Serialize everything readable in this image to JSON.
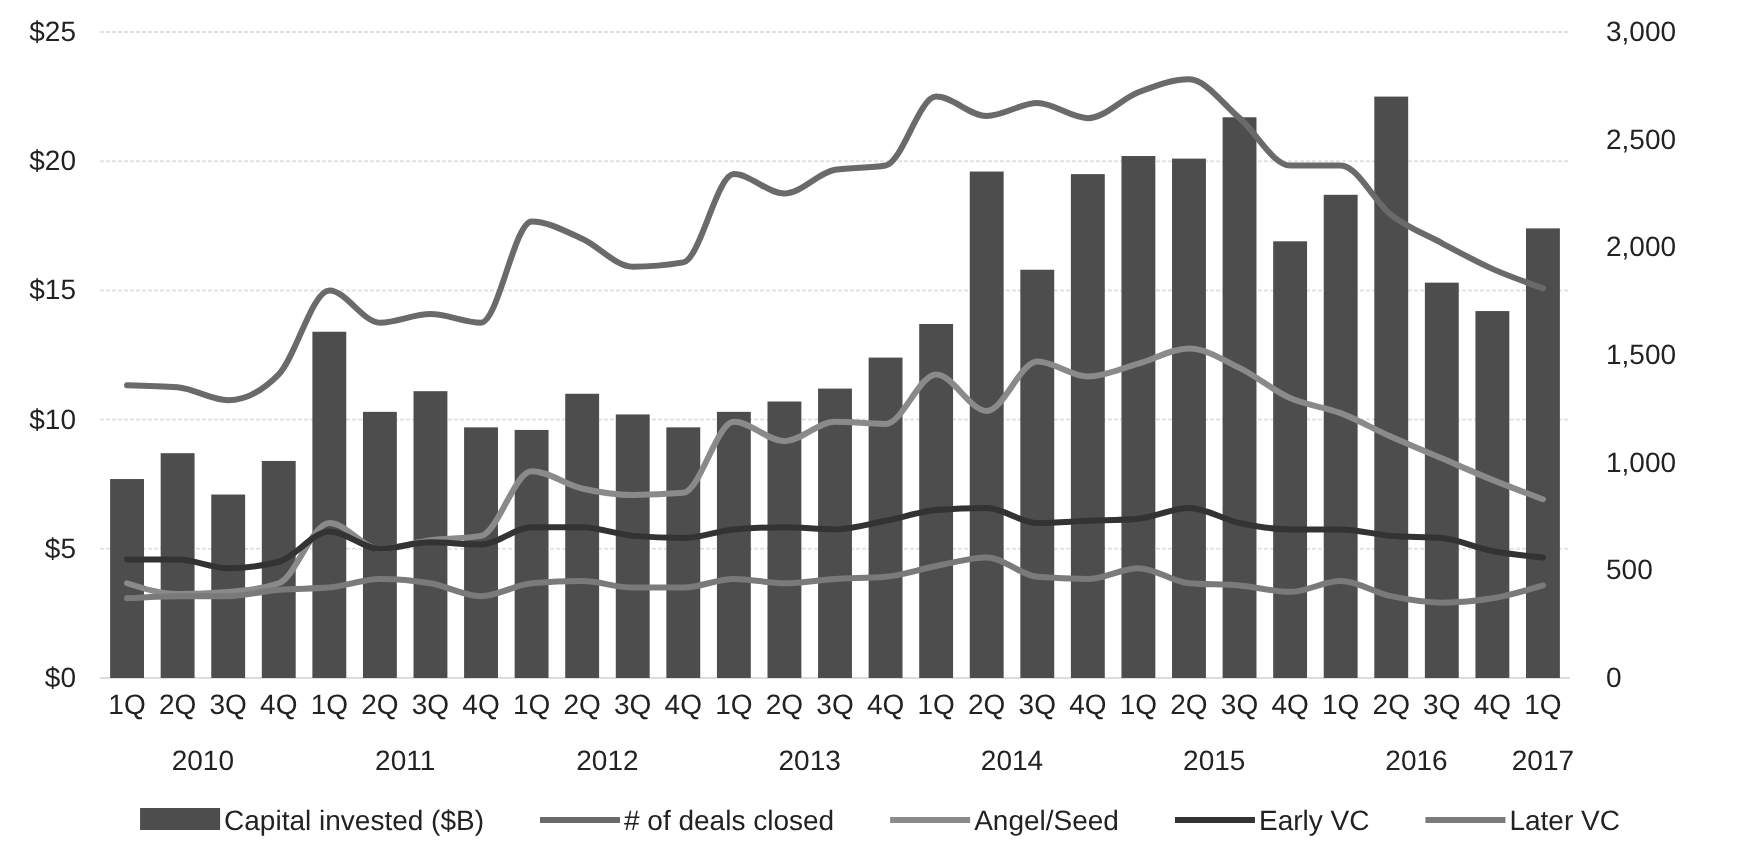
{
  "chart_data": {
    "type": "bar",
    "categories": [
      "1Q",
      "2Q",
      "3Q",
      "4Q",
      "1Q",
      "2Q",
      "3Q",
      "4Q",
      "1Q",
      "2Q",
      "3Q",
      "4Q",
      "1Q",
      "2Q",
      "3Q",
      "4Q",
      "1Q",
      "2Q",
      "3Q",
      "4Q",
      "1Q",
      "2Q",
      "3Q",
      "4Q",
      "1Q",
      "2Q",
      "3Q",
      "4Q",
      "1Q"
    ],
    "annotations": [
      "2010",
      "2011",
      "2012",
      "2013",
      "2014",
      "2015",
      "2016",
      "2017"
    ],
    "series": [
      {
        "name": "Capital invested ($B)",
        "color": "#4d4d4d",
        "values": [
          7.7,
          8.7,
          7.1,
          8.4,
          13.4,
          10.3,
          11.1,
          9.7,
          9.6,
          11.0,
          10.2,
          9.7,
          10.3,
          10.7,
          11.2,
          12.4,
          13.7,
          19.6,
          15.8,
          19.5,
          20.2,
          20.1,
          21.7,
          16.9,
          18.7,
          22.5,
          15.3,
          14.2,
          17.4
        ]
      },
      {
        "name": "# of deals closed",
        "type": "line",
        "axis": "y2",
        "color": "#6a6a6a",
        "values": [
          1360,
          1350,
          1290,
          1410,
          1800,
          1650,
          1690,
          1650,
          2120,
          2040,
          1910,
          1930,
          2340,
          2250,
          2360,
          2380,
          2700,
          2610,
          2670,
          2600,
          2720,
          2780,
          2600,
          2380,
          2380,
          2150,
          2020,
          1900,
          1810
        ]
      },
      {
        "name": "Angel/Seed",
        "type": "line",
        "axis": "y2",
        "color": "#8a8a8a",
        "values": [
          440,
          390,
          400,
          440,
          720,
          600,
          640,
          660,
          960,
          880,
          850,
          860,
          1190,
          1100,
          1190,
          1180,
          1410,
          1240,
          1470,
          1400,
          1460,
          1530,
          1440,
          1300,
          1230,
          1120,
          1020,
          920,
          830
        ]
      },
      {
        "name": "Early VC",
        "type": "line",
        "axis": "y2",
        "color": "#333333",
        "values": [
          550,
          550,
          510,
          540,
          680,
          600,
          630,
          620,
          700,
          700,
          660,
          650,
          690,
          700,
          690,
          730,
          780,
          790,
          720,
          730,
          740,
          790,
          720,
          690,
          690,
          660,
          650,
          590,
          560
        ]
      },
      {
        "name": "Later VC",
        "type": "line",
        "axis": "y2",
        "color": "#7a7a7a",
        "values": [
          370,
          380,
          380,
          410,
          420,
          460,
          440,
          380,
          440,
          450,
          420,
          420,
          460,
          440,
          460,
          470,
          520,
          560,
          470,
          460,
          510,
          440,
          430,
          400,
          450,
          380,
          350,
          370,
          430
        ]
      }
    ],
    "ylim": [
      0,
      25
    ],
    "yticks": [
      {
        "value": 0,
        "label": "$0"
      },
      {
        "value": 5,
        "label": "$5"
      },
      {
        "value": 10,
        "label": "$10"
      },
      {
        "value": 15,
        "label": "$15"
      },
      {
        "value": 20,
        "label": "$20"
      },
      {
        "value": 25,
        "label": "$25"
      }
    ],
    "y2lim": [
      0,
      3000
    ],
    "y2ticks": [
      0,
      {
        "value": 500,
        "label": "500"
      },
      {
        "value": 1000,
        "label": "1,000"
      },
      {
        "value": 1500,
        "label": "1,500"
      },
      {
        "value": 2000,
        "label": "2,000"
      },
      {
        "value": 2500,
        "label": "2,500"
      },
      {
        "value": 3000,
        "label": "3,000"
      }
    ],
    "grid": "y",
    "legend": "bottom"
  }
}
